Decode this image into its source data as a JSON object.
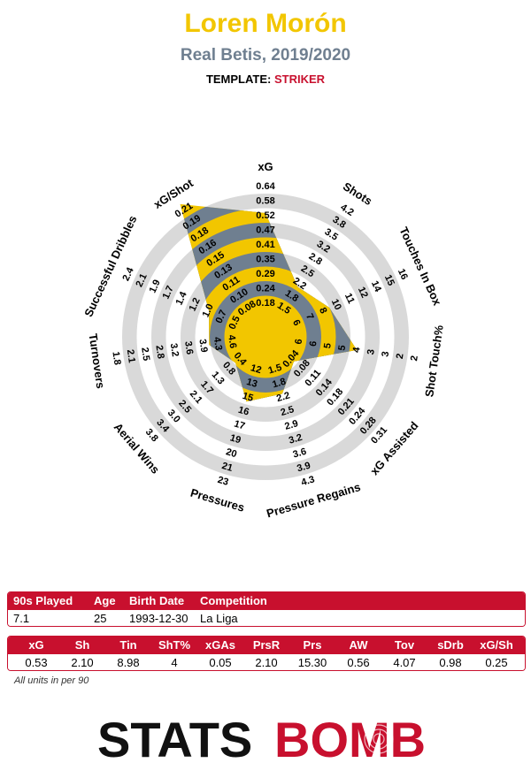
{
  "header": {
    "player_name": "Loren Morón",
    "team_season": "Real Betis, 2019/2020",
    "template_label": "TEMPLATE:",
    "template_value": "STRIKER"
  },
  "colors": {
    "title": "#f2c600",
    "subtitle": "#6f7f90",
    "accent_red": "#c8102e",
    "ring_grey": "#d9d9d9",
    "polygon_yellow": "#f2c600",
    "polygon_slate": "#6f7f90"
  },
  "chart_data": {
    "type": "radar",
    "metrics": [
      {
        "label": "xG",
        "value": 0.53,
        "ticks": [
          "0.18",
          "0.24",
          "0.29",
          "0.35",
          "0.41",
          "0.47",
          "0.52",
          "0.58",
          "0.64"
        ]
      },
      {
        "label": "Shots",
        "value": 2.1,
        "ticks": [
          "1.5",
          "1.8",
          "2.2",
          "2.5",
          "2.8",
          "3.2",
          "3.5",
          "3.8",
          "4.2"
        ]
      },
      {
        "label": "Touches In Box",
        "value": 8.98,
        "ticks": [
          "6",
          "7",
          "8",
          "10",
          "11",
          "12",
          "14",
          "15",
          "16"
        ]
      },
      {
        "label": "Shot Touch%",
        "value": 4,
        "ticks": [
          "6",
          "6",
          "5",
          "5",
          "4",
          "3",
          "3",
          "2",
          "2"
        ]
      },
      {
        "label": "xG Assisted",
        "value": 0.05,
        "ticks": [
          "0.04",
          "0.08",
          "0.11",
          "0.14",
          "0.18",
          "0.21",
          "0.24",
          "0.28",
          "0.31"
        ]
      },
      {
        "label": "Pressure Regains",
        "value": 2.1,
        "ticks": [
          "1.5",
          "1.8",
          "2.2",
          "2.5",
          "2.9",
          "3.2",
          "3.6",
          "3.9",
          "4.3"
        ]
      },
      {
        "label": "Pressures",
        "value": 15.3,
        "ticks": [
          "12",
          "13",
          "15",
          "16",
          "17",
          "19",
          "20",
          "21",
          "23"
        ]
      },
      {
        "label": "Aerial Wins",
        "value": 0.56,
        "ticks": [
          "0.4",
          "0.8",
          "1.3",
          "1.7",
          "2.1",
          "2.5",
          "3.0",
          "3.4",
          "3.8"
        ]
      },
      {
        "label": "Turnovers",
        "value": 4.07,
        "ticks": [
          "4.6",
          "4.3",
          "3.9",
          "3.6",
          "3.2",
          "2.8",
          "2.5",
          "2.1",
          "1.8"
        ]
      },
      {
        "label": "Successful Dribbles",
        "value": 0.98,
        "ticks": [
          "0.5",
          "0.7",
          "1.0",
          "1.2",
          "1.4",
          "1.7",
          "1.9",
          "2.1",
          "2.4"
        ]
      },
      {
        "label": "xG/Shot",
        "value": 0.25,
        "ticks": [
          "0.08",
          "0.10",
          "0.11",
          "0.13",
          "0.15",
          "0.16",
          "0.18",
          "0.19",
          "0.21"
        ]
      }
    ]
  },
  "info_table": {
    "headers": [
      "90s Played",
      "Age",
      "Birth Date",
      "Competition"
    ],
    "values": [
      "7.1",
      "25",
      "1993-12-30",
      "La Liga"
    ]
  },
  "stats_table": {
    "headers": [
      "xG",
      "Sh",
      "Tin",
      "ShT%",
      "xGAs",
      "PrsR",
      "Prs",
      "AW",
      "Tov",
      "sDrb",
      "xG/Sh"
    ],
    "values": [
      "0.53",
      "2.10",
      "8.98",
      "4",
      "0.05",
      "2.10",
      "15.30",
      "0.56",
      "4.07",
      "0.98",
      "0.25"
    ]
  },
  "footnote": "All units in per 90",
  "logo": {
    "part1": "STATS",
    "part2": "BOMB"
  }
}
